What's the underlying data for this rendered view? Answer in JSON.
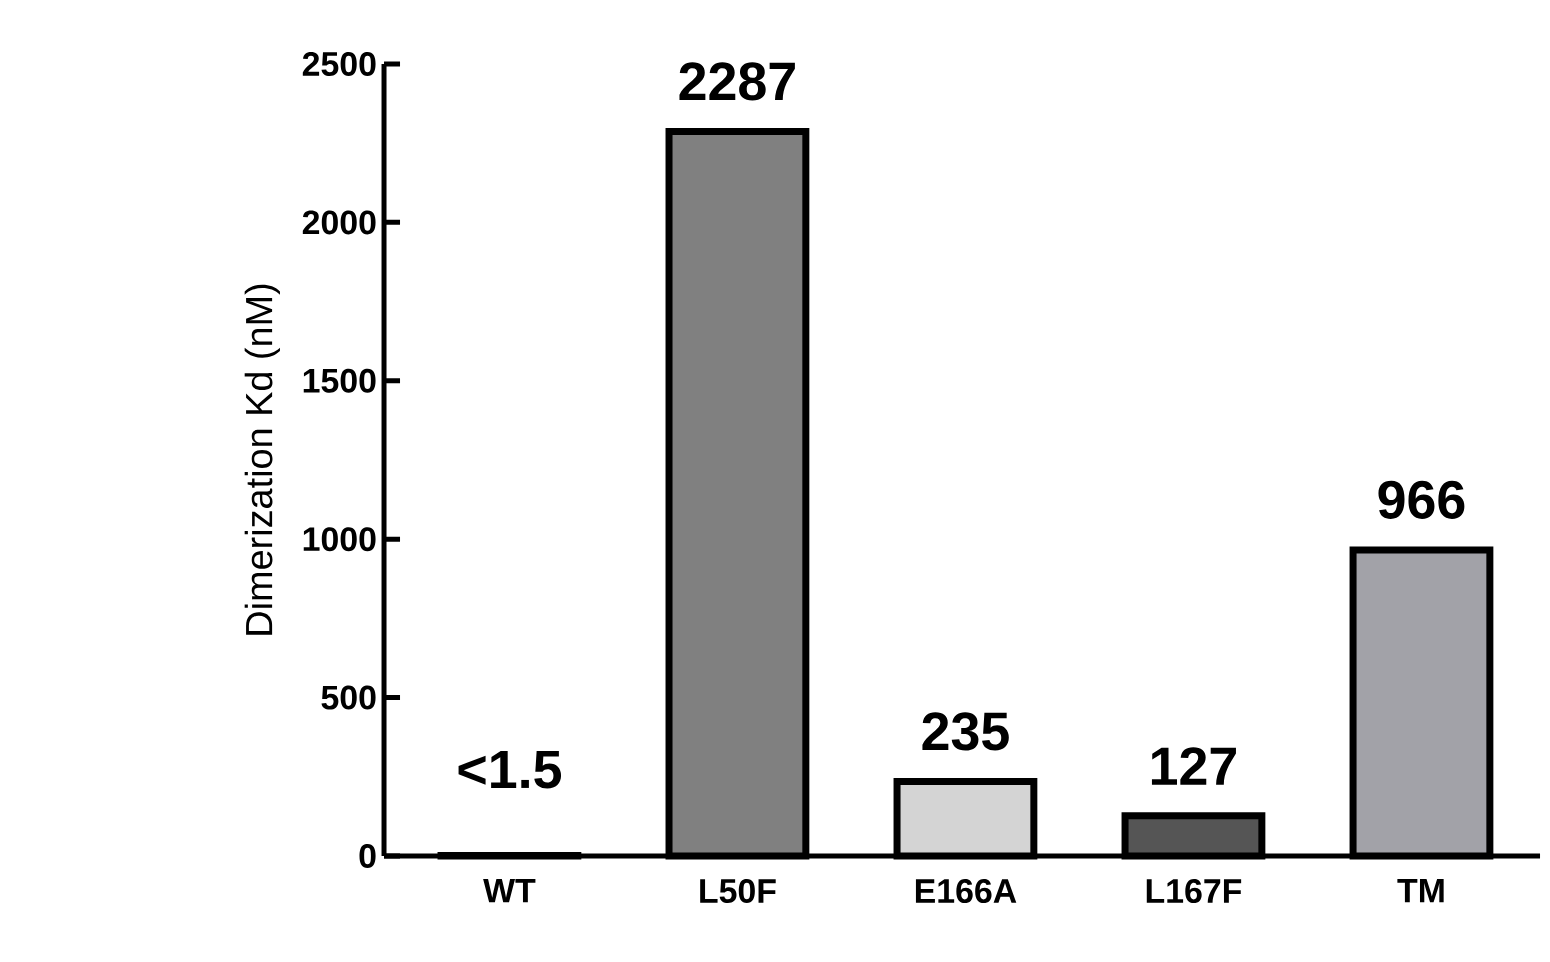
{
  "chart_data": {
    "type": "bar",
    "ylabel": "Dimerization Kd (nM)",
    "categories": [
      "WT",
      "L50F",
      "E166A",
      "L167F",
      "TM"
    ],
    "values": [
      1.5,
      2287,
      235,
      127,
      966
    ],
    "value_labels": [
      "<1.5",
      "2287",
      "235",
      "127",
      "966"
    ],
    "colors": [
      "#ffffff",
      "#808080",
      "#d4d4d4",
      "#555555",
      "#a2a2a8"
    ],
    "ylim": [
      0,
      2500
    ],
    "yticks": [
      0,
      500,
      1000,
      1500,
      2000,
      2500
    ]
  }
}
